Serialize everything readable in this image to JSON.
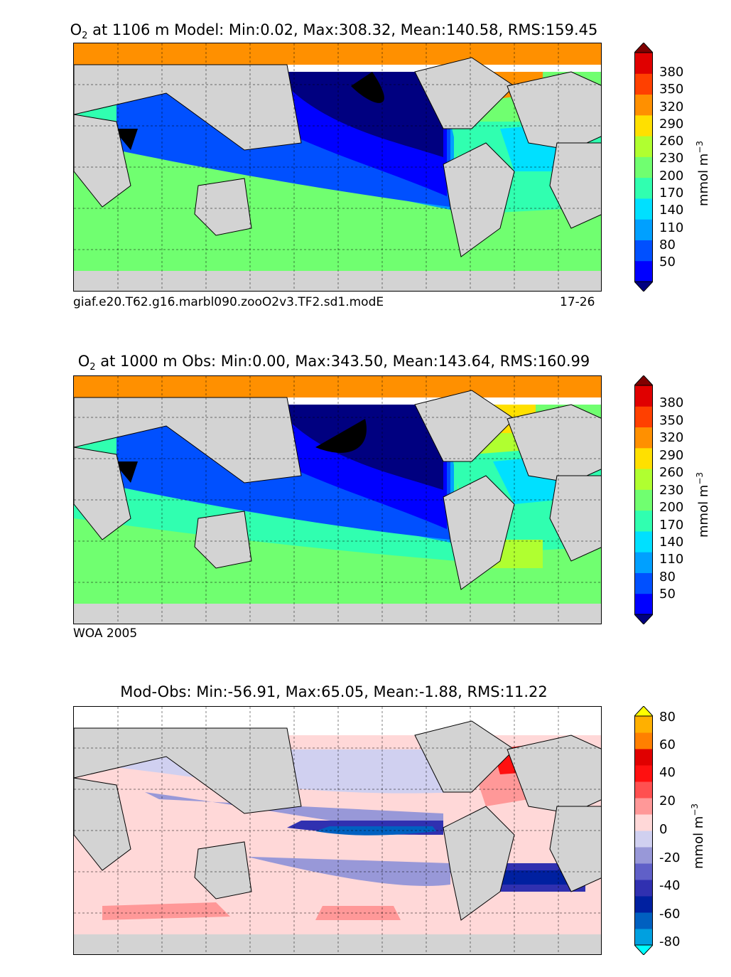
{
  "panels": [
    {
      "title_species": "O",
      "title_sub": "2",
      "title_rest": "at 1106 m Model: Min:0.02, Max:308.32, Mean:140.58, RMS:159.45",
      "caption_left": "giaf.e20.T62.g16.marbl090.zooO2v3.TF2.sd1.modE",
      "caption_right": "17-26",
      "colorbar": {
        "ticks": [
          "380",
          "350",
          "320",
          "290",
          "260",
          "230",
          "200",
          "170",
          "140",
          "110",
          "80",
          "50"
        ],
        "unit_main": "mmol m",
        "unit_sup": "−3",
        "colors": [
          "#000080",
          "#0000ff",
          "#0050ff",
          "#00a0ff",
          "#00e0ff",
          "#30ffb0",
          "#70ff70",
          "#b0ff30",
          "#ffe000",
          "#ff9000",
          "#ff4000",
          "#e00000",
          "#800000"
        ]
      }
    },
    {
      "title_species": "O",
      "title_sub": "2",
      "title_rest": "at 1000 m Obs: Min:0.00, Max:343.50, Mean:143.64, RMS:160.99",
      "caption_left": "WOA 2005",
      "caption_right": "",
      "colorbar": {
        "ticks": [
          "380",
          "350",
          "320",
          "290",
          "260",
          "230",
          "200",
          "170",
          "140",
          "110",
          "80",
          "50"
        ],
        "unit_main": "mmol m",
        "unit_sup": "−3",
        "colors": [
          "#000080",
          "#0000ff",
          "#0050ff",
          "#00a0ff",
          "#00e0ff",
          "#30ffb0",
          "#70ff70",
          "#b0ff30",
          "#ffe000",
          "#ff9000",
          "#ff4000",
          "#e00000",
          "#800000"
        ]
      }
    },
    {
      "title_species": "",
      "title_sub": "",
      "title_rest": "Mod-Obs: Min:-56.91, Max:65.05, Mean:-1.88, RMS:11.22",
      "caption_left": "",
      "caption_right": "",
      "colorbar": {
        "ticks": [
          "80",
          "60",
          "40",
          "20",
          "0",
          "-20",
          "-40",
          "-60",
          "-80"
        ],
        "unit_main": "mmol m",
        "unit_sup": "−3",
        "colors": [
          "#00ffff",
          "#00a0e0",
          "#0060c0",
          "#0020a0",
          "#3030b0",
          "#6060c8",
          "#9898d8",
          "#d0d0f0",
          "#ffd8d8",
          "#ff9898",
          "#ff5050",
          "#ff1010",
          "#e00000",
          "#ff8000",
          "#ffb000",
          "#ffff00"
        ]
      }
    }
  ]
}
